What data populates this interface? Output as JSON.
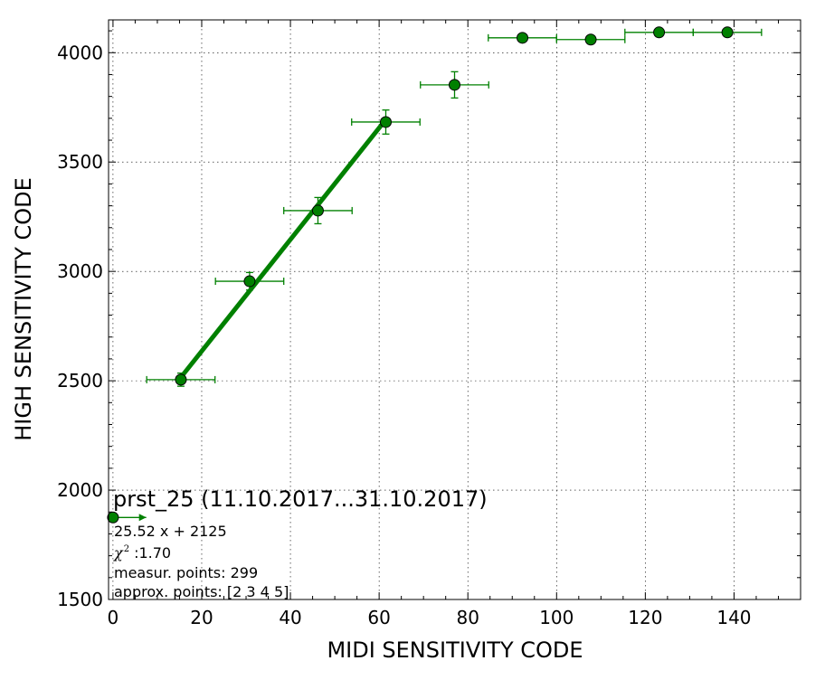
{
  "chart_data": {
    "type": "scatter",
    "xlabel": "MIDI SENSITIVITY CODE",
    "ylabel": "HIGH SENSITIVITY CODE",
    "xlim": [
      -1,
      155
    ],
    "ylim": [
      1500,
      4150
    ],
    "xticks": [
      0,
      20,
      40,
      60,
      80,
      100,
      120,
      140
    ],
    "yticks": [
      1500,
      2000,
      2500,
      3000,
      3500,
      4000
    ],
    "grid": true,
    "colors": {
      "series": "#008000",
      "marker_edge": "#000000",
      "fit": "#008000"
    },
    "series": [
      {
        "points": [
          {
            "x": 0,
            "y": 1875,
            "xerr_lo": 0,
            "xerr_hi": 7.5,
            "yerr": 0
          },
          {
            "x": 15.3,
            "y": 2505,
            "xerr_lo": 7.7,
            "xerr_hi": 7.7,
            "yerr": 30
          },
          {
            "x": 30.8,
            "y": 2955,
            "xerr_lo": 7.7,
            "xerr_hi": 7.7,
            "yerr": 40
          },
          {
            "x": 46.2,
            "y": 3278,
            "xerr_lo": 7.7,
            "xerr_hi": 7.7,
            "yerr": 60
          },
          {
            "x": 61.5,
            "y": 3683,
            "xerr_lo": 7.7,
            "xerr_hi": 7.7,
            "yerr": 55
          },
          {
            "x": 77.0,
            "y": 3853,
            "xerr_lo": 7.7,
            "xerr_hi": 7.7,
            "yerr": 60
          },
          {
            "x": 92.3,
            "y": 4068,
            "xerr_lo": 7.7,
            "xerr_hi": 7.7,
            "yerr": 0
          },
          {
            "x": 107.7,
            "y": 4060,
            "xerr_lo": 7.7,
            "xerr_hi": 7.7,
            "yerr": 0
          },
          {
            "x": 123.1,
            "y": 4093,
            "xerr_lo": 7.7,
            "xerr_hi": 7.7,
            "yerr": 0
          },
          {
            "x": 138.5,
            "y": 4093,
            "xerr_lo": 7.7,
            "xerr_hi": 7.7,
            "yerr": 0
          }
        ]
      }
    ],
    "fit_line": {
      "slope": 25.52,
      "intercept": 2125,
      "x_range": [
        15.3,
        61.5
      ]
    },
    "annotation": {
      "title": "prst_25 (11.10.2017...31.10.2017)",
      "equation": "25.52 x + 2125",
      "chi_symbol": "χ",
      "chi_power": "2",
      "chi_value": ":1.70",
      "measur_points": "measur. points: 299",
      "approx_points": "approx. points: [2 3 4 5]"
    }
  }
}
